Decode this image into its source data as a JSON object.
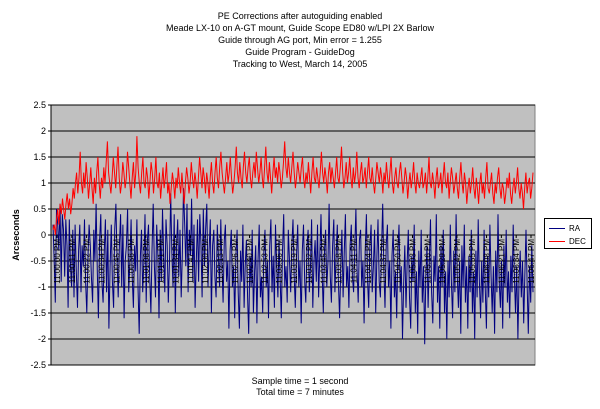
{
  "title_lines": [
    "PE Corrections after autoguiding enabled",
    "Meade LX-10 on A-GT mount, Guide Scope ED80 w/LPI 2X Barlow",
    "Guide through AG port, Min error = 1.255",
    "Guide Program - GuideDog",
    "Tracking to West, March 14, 2005"
  ],
  "footer_lines": [
    "Sample time = 1 second",
    "Total time = 7 minutes"
  ],
  "colors": {
    "plot_bg": "#c0c0c0",
    "ra": "#000080",
    "dec": "#ff0000",
    "grid": "#000000"
  },
  "chart_data": {
    "type": "line",
    "title": "PE Corrections after autoguiding enabled",
    "xlabel": "",
    "ylabel": "Arcseconds",
    "ylim": [
      -2.5,
      2.5
    ],
    "yticks": [
      "2.5",
      "2",
      "1.5",
      "1",
      "0.5",
      "0",
      "-0.5",
      "-1",
      "-1.5",
      "-2",
      "-2.5"
    ],
    "x_tick_labels": [
      "11:00:00 PM",
      "11:00:11 PM",
      "11:00:22 PM",
      "11:00:34 PM",
      "11:00:45 PM",
      "11:00:56 PM",
      "11:01:08 PM",
      "11:01:21 PM",
      "11:01:34 PM",
      "11:01:47 PM",
      "11:02:00 PM",
      "11:02:13 PM",
      "11:02:26 PM",
      "11:02:40 PM",
      "11:02:53 PM",
      "11:03:06 PM",
      "11:03:19 PM",
      "11:03:32 PM",
      "11:03:45 PM",
      "11:03:58 PM",
      "11:04:11 PM",
      "11:04:24 PM",
      "11:04:37 PM",
      "11:04:50 PM",
      "11:05:03 PM",
      "11:05:16 PM",
      "11:05:29 PM",
      "11:05:42 PM",
      "11:05:55 PM",
      "11:06:08 PM",
      "11:06:21 PM",
      "11:06:34 PM",
      "11:06:47 PM"
    ],
    "grid": true,
    "legend_position": "right",
    "series": [
      {
        "name": "RA",
        "values": [
          0.2,
          -0.5,
          -1.3,
          0.5,
          0.2,
          -0.3,
          0.6,
          -0.9,
          0.4,
          0.1,
          -0.8,
          0.3,
          -0.2,
          -1.4,
          0.3,
          -0.6,
          -1.0,
          0.1,
          -1.2,
          0.2,
          -0.7,
          -1.4,
          -0.3,
          0.2,
          -1.1,
          -0.2,
          -0.6,
          0.3,
          -0.9,
          -1.5,
          -0.4,
          0.2,
          -0.2,
          -0.8,
          -1.3,
          0.1,
          -0.5,
          0.6,
          -0.7,
          -1.6,
          -0.1,
          0.4,
          -0.9,
          -1.3,
          -0.3,
          0.3,
          -1.1,
          0.1,
          -1.8,
          -0.6,
          0.2,
          -0.9,
          -1.4,
          0.1,
          0.6,
          -0.5,
          -1.2,
          -0.2,
          0.4,
          -1.0,
          0.2,
          -1.6,
          -0.5,
          -0.2,
          0.5,
          -1.1,
          -0.5,
          0.3,
          -0.8,
          -1.4,
          -0.2,
          -0.7,
          0.3,
          -1.0,
          -1.9,
          -0.4,
          0.1,
          -1.1,
          -0.5,
          0.4,
          -1.3,
          -0.1,
          0.2,
          -0.8,
          -1.5,
          -0.3,
          0.6,
          -0.6,
          -1.2,
          0.2,
          -0.4,
          -1.6,
          0.1,
          -0.9,
          0.5,
          -0.4,
          -1.1,
          0.3,
          -0.2,
          -1.3,
          -0.5,
          0.8,
          -0.3,
          -1.0,
          0.4,
          -1.5,
          -0.2,
          0.3,
          -0.8,
          0.1,
          -1.2,
          -0.4,
          0.9,
          0.2,
          -0.6,
          0.6,
          -1.1,
          0.1,
          -0.4,
          0.7,
          -0.9,
          0.2,
          -1.4,
          -0.5,
          0.3,
          -0.9,
          0.4,
          -0.2,
          -1.2,
          0.5,
          -0.6,
          0.1,
          0.6,
          -1.0,
          -0.3,
          0.3,
          -1.5,
          -0.2,
          0.1,
          -0.8,
          -1.2,
          0.2,
          -0.4,
          -1.0,
          0.3,
          -0.6,
          -1.3,
          -0.1,
          0.2,
          -0.9,
          -0.5,
          -1.8,
          -0.3,
          0.1,
          -1.0,
          -0.6,
          -1.6,
          -0.4,
          0.1,
          -1.1,
          -1.8,
          -0.3,
          -0.9,
          0.2,
          -1.4,
          -0.6,
          -0.1,
          -1.2,
          -1.9,
          -0.4,
          -1.0,
          0.1,
          -1.5,
          -0.7,
          -0.2,
          -1.7,
          -0.5,
          0.2,
          -1.2,
          -0.8,
          -1.5,
          -0.3,
          0.1,
          -1.0,
          -0.5,
          -1.6,
          -0.2,
          0.3,
          -1.1,
          -0.4,
          -1.4,
          0.2,
          -0.6,
          -1.2,
          -0.1,
          -0.9,
          -1.6,
          -0.3,
          0.4,
          -1.0,
          -0.6,
          -1.3,
          0.1,
          -0.5,
          -1.1,
          -0.2,
          0.3,
          -0.8,
          -1.4,
          -0.4,
          0.2,
          -1.0,
          -0.5,
          -1.7,
          -0.3,
          0.2,
          -0.9,
          -1.3,
          -0.2,
          0.1,
          -1.1,
          -0.6,
          0.3,
          -1.4,
          -0.5,
          -0.1,
          -0.9,
          0.2,
          -1.2,
          -0.4,
          0.4,
          -0.7,
          -1.5,
          -0.3,
          0.1,
          -1.0,
          -0.5,
          0.6,
          -0.8,
          -1.3,
          -0.2,
          0.3,
          -1.1,
          -0.4,
          0.2,
          -0.9,
          -1.6,
          -0.6,
          0.1,
          -1.2,
          -0.3,
          0.4,
          -1.0,
          -0.6,
          -1.4,
          -0.2,
          0.2,
          -0.8,
          -1.1,
          -0.3,
          0.5,
          -0.7,
          -1.3,
          -0.1,
          0.1,
          -1.0,
          -0.5,
          -1.7,
          -0.3,
          0.4,
          -0.9,
          -1.4,
          -0.2,
          0.2,
          -1.1,
          -0.6,
          0.1,
          -1.5,
          -0.4,
          0.3,
          -0.9,
          -1.2,
          -0.3,
          0.6,
          -0.7,
          -1.4,
          -0.2,
          0.2,
          -1.0,
          -0.5,
          -1.8,
          -0.4,
          0.1,
          -1.2,
          -0.7,
          -1.6,
          -0.3,
          0.2,
          -1.1,
          -0.6,
          -2.0,
          -0.9,
          -0.2,
          -1.4,
          -0.5,
          0.1,
          -1.2,
          -1.8,
          -0.4,
          -0.9,
          0.2,
          -1.5,
          -0.7,
          -1.9,
          -0.3,
          -1.0,
          0.1,
          -1.3,
          -0.6,
          -2.1,
          -0.8,
          -0.2,
          -1.4,
          -0.5,
          0.3,
          -1.1,
          -1.7,
          -0.4,
          -0.9,
          0.4,
          -1.3,
          -0.6,
          -1.8,
          -0.2,
          -1.0,
          0.1,
          -1.5,
          -0.7,
          -2.0,
          -0.5,
          -1.2,
          0.2,
          -0.9,
          -1.6,
          -0.3,
          -1.1,
          0.4,
          -0.8,
          -1.4,
          -0.5,
          -1.9,
          -0.2,
          -1.0,
          0.2,
          -1.3,
          -0.6,
          -1.8,
          -0.4,
          -1.1,
          0.1,
          -1.5,
          -0.7,
          -2.0,
          -0.3,
          -1.2,
          0.3,
          -0.9,
          -1.6,
          -0.5,
          -1.3,
          0.1,
          -1.0,
          -1.8,
          -0.4,
          -1.2,
          0.2,
          -0.8,
          -1.5,
          -0.6,
          -1.9,
          -0.3,
          -1.1,
          0.4,
          -0.9,
          -1.4,
          -0.5,
          -1.8,
          -0.2,
          -1.0,
          0.1,
          -1.3,
          -0.7,
          -1.6,
          -0.4,
          -1.1,
          0.2,
          -0.8,
          -1.5,
          -0.6,
          -2.0,
          -0.9,
          -0.3,
          -1.2,
          -0.5,
          -1.7,
          -0.8,
          0.1,
          -1.0,
          -1.9,
          -0.6,
          -1.3,
          -0.2,
          -1.1
        ]
      },
      {
        "name": "DEC",
        "values": [
          0.1,
          0.2,
          0.0,
          0.3,
          0.5,
          0.2,
          0.6,
          0.4,
          0.7,
          0.5,
          0.3,
          0.6,
          0.8,
          0.5,
          0.7,
          0.4,
          0.6,
          0.9,
          0.7,
          1.0,
          1.2,
          0.8,
          1.1,
          1.6,
          1.0,
          0.8,
          1.2,
          0.9,
          1.4,
          1.1,
          0.7,
          1.0,
          1.3,
          0.9,
          0.6,
          1.1,
          0.8,
          1.2,
          1.5,
          1.0,
          0.7,
          1.1,
          0.9,
          1.3,
          1.0,
          1.4,
          1.8,
          1.2,
          1.0,
          0.8,
          1.1,
          1.5,
          1.2,
          0.9,
          1.3,
          1.7,
          1.1,
          0.8,
          1.0,
          1.4,
          1.2,
          0.9,
          1.1,
          1.6,
          1.3,
          1.0,
          0.7,
          1.1,
          1.4,
          0.9,
          1.2,
          1.9,
          1.3,
          1.0,
          0.8,
          1.2,
          1.5,
          1.0,
          0.9,
          1.3,
          1.1,
          0.7,
          1.0,
          1.4,
          1.2,
          0.8,
          1.1,
          1.5,
          1.0,
          0.9,
          1.2,
          0.7,
          1.0,
          1.3,
          0.9,
          1.1,
          1.4,
          0.8,
          1.0,
          0.6,
          0.9,
          1.2,
          1.0,
          0.7,
          1.1,
          0.9,
          1.3,
          1.0,
          0.8,
          1.2,
          0.9,
          0.6,
          1.0,
          1.3,
          1.1,
          0.8,
          1.0,
          1.4,
          1.1,
          0.9,
          1.2,
          1.0,
          0.7,
          1.1,
          1.5,
          1.2,
          0.9,
          1.3,
          1.1,
          0.8,
          1.2,
          1.0,
          0.7,
          1.1,
          1.4,
          1.0,
          0.8,
          1.2,
          1.5,
          1.1,
          0.9,
          1.3,
          1.6,
          1.2,
          1.0,
          0.8,
          1.1,
          1.4,
          1.0,
          1.2,
          1.5,
          1.1,
          0.8,
          1.0,
          1.3,
          1.7,
          1.2,
          1.0,
          1.4,
          1.1,
          0.9,
          1.3,
          1.6,
          1.2,
          1.0,
          1.3,
          1.5,
          1.1,
          0.9,
          1.2,
          1.4,
          1.1,
          1.6,
          1.3,
          1.0,
          1.2,
          1.5,
          1.1,
          0.9,
          1.3,
          1.7,
          1.2,
          1.0,
          1.4,
          1.1,
          0.8,
          1.2,
          1.5,
          1.1,
          1.3,
          1.0,
          1.4,
          1.2,
          0.9,
          1.1,
          1.4,
          1.8,
          1.3,
          1.1,
          1.5,
          1.2,
          1.0,
          1.3,
          1.6,
          1.2,
          0.9,
          1.1,
          1.4,
          1.2,
          1.0,
          1.3,
          1.5,
          1.1,
          0.9,
          1.2,
          1.0,
          1.4,
          1.1,
          0.8,
          1.2,
          1.5,
          1.1,
          1.0,
          1.3,
          1.1,
          0.9,
          1.2,
          1.6,
          1.2,
          1.0,
          1.3,
          1.1,
          0.8,
          1.2,
          1.4,
          1.0,
          1.3,
          1.1,
          0.9,
          1.2,
          1.5,
          1.1,
          1.0,
          1.3,
          1.7,
          1.2,
          0.9,
          1.1,
          1.4,
          1.0,
          1.2,
          1.5,
          1.1,
          0.9,
          1.3,
          1.0,
          1.2,
          1.6,
          1.1,
          0.9,
          1.2,
          1.4,
          1.0,
          1.1,
          1.3,
          0.9,
          1.2,
          1.5,
          1.1,
          1.0,
          1.3,
          1.0,
          0.8,
          1.1,
          1.4,
          1.2,
          1.0,
          1.3,
          1.1,
          0.8,
          1.2,
          1.0,
          1.4,
          1.1,
          0.9,
          1.2,
          1.5,
          1.0,
          0.8,
          1.1,
          1.3,
          1.0,
          0.9,
          1.2,
          1.4,
          1.1,
          0.8,
          1.0,
          1.3,
          1.1,
          0.7,
          1.0,
          1.2,
          0.9,
          1.1,
          1.4,
          1.0,
          0.8,
          1.2,
          1.0,
          0.9,
          1.1,
          1.3,
          0.9,
          1.0,
          1.2,
          0.8,
          1.1,
          1.5,
          1.0,
          0.9,
          1.2,
          1.0,
          0.7,
          1.1,
          1.3,
          0.9,
          1.0,
          1.2,
          0.8,
          1.1,
          1.4,
          1.0,
          0.9,
          1.2,
          0.7,
          1.0,
          1.3,
          1.1,
          0.8,
          1.0,
          1.2,
          0.9,
          0.7,
          1.1,
          1.4,
          1.0,
          0.8,
          1.2,
          1.0,
          0.6,
          0.9,
          1.1,
          0.8,
          1.0,
          1.3,
          0.9,
          0.7,
          1.1,
          0.9,
          0.6,
          1.0,
          1.2,
          0.8,
          1.0,
          0.7,
          1.1,
          1.4,
          0.9,
          0.8,
          1.0,
          1.2,
          0.8,
          0.6,
          1.0,
          0.8,
          1.1,
          1.3,
          0.9,
          0.7,
          1.0,
          0.9,
          0.6,
          0.8,
          1.1,
          0.9,
          1.2,
          0.8,
          0.6,
          0.9,
          1.1,
          0.8,
          1.0,
          1.3,
          0.9,
          0.7,
          1.0,
          0.8,
          0.5,
          0.9,
          1.2,
          0.8,
          1.0,
          1.1,
          0.7,
          0.9,
          1.2
        ]
      }
    ]
  }
}
